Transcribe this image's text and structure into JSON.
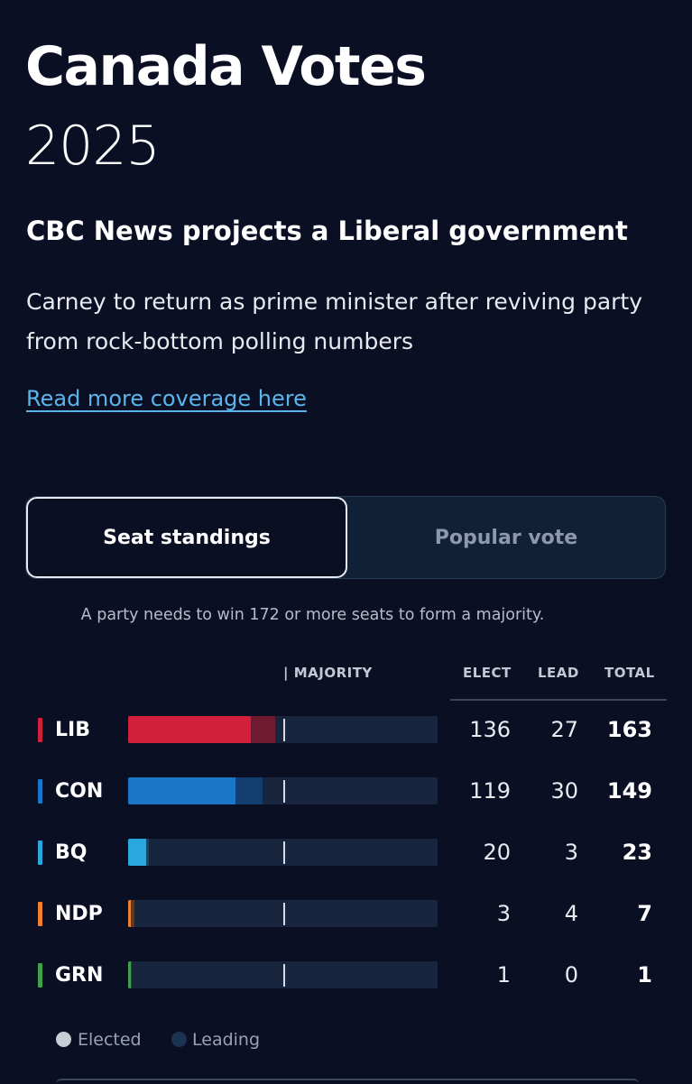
{
  "header": {
    "title": "Canada Votes",
    "year": "2025",
    "headline": "CBC News projects a Liberal government",
    "dek": "Carney to return as prime minister after reviving party from rock-bottom polling numbers",
    "read_more": "Read more coverage here"
  },
  "tabs": {
    "seat_standings": "Seat standings",
    "popular_vote": "Popular vote",
    "active": "seat_standings"
  },
  "note": "A party needs to win 172 or more seats to form a majority.",
  "table": {
    "headers": {
      "majority": "| MAJORITY",
      "elect": "ELECT",
      "lead": "LEAD",
      "total": "TOTAL"
    },
    "majority_threshold": 172,
    "rows": [
      {
        "party": "LIB",
        "elect": "136",
        "lead": "27",
        "total": "163",
        "color": "#d21f3c",
        "lead_color": "#701a31"
      },
      {
        "party": "CON",
        "elect": "119",
        "lead": "30",
        "total": "149",
        "color": "#1a76c9",
        "lead_color": "#113e6e"
      },
      {
        "party": "BQ",
        "elect": "20",
        "lead": "3",
        "total": "23",
        "color": "#29a8e0",
        "lead_color": "#164765"
      },
      {
        "party": "NDP",
        "elect": "3",
        "lead": "4",
        "total": "7",
        "color": "#f07f2e",
        "lead_color": "#5a3a2a"
      },
      {
        "party": "GRN",
        "elect": "1",
        "lead": "0",
        "total": "1",
        "color": "#3da24a",
        "lead_color": "#1e4a30"
      }
    ]
  },
  "legend": {
    "elected": "Elected",
    "leading": "Leading",
    "elected_color": "#c9cdd6",
    "leading_color": "#1b3350"
  }
}
